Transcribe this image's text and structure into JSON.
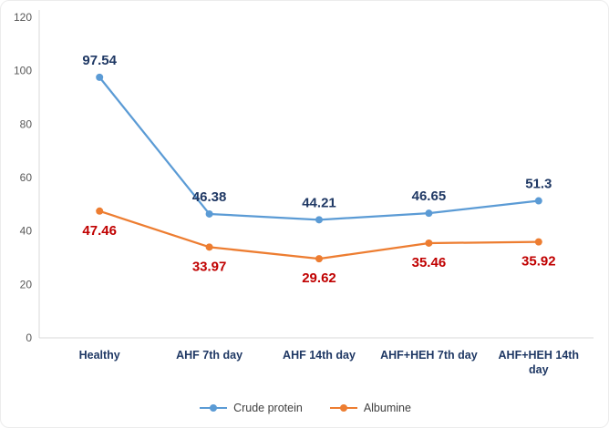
{
  "chart_data": {
    "type": "line",
    "title": "",
    "xlabel": "",
    "ylabel": "",
    "categories": [
      "Healthy",
      "AHF 7th day",
      "AHF 14th day",
      "AHF+HEH 7th day",
      "AHF+HEH 14th day"
    ],
    "series": [
      {
        "name": "Crude protein",
        "values": [
          97.54,
          46.38,
          44.21,
          46.65,
          51.3
        ],
        "color": "#5B9BD5",
        "label_color": "#1F3864",
        "label_position": "above"
      },
      {
        "name": "Albumine",
        "values": [
          47.46,
          33.97,
          29.62,
          35.46,
          35.92
        ],
        "color": "#ED7D31",
        "label_color": "#C00000",
        "label_position": "below"
      }
    ],
    "ylim": [
      0,
      120
    ],
    "yticks": [
      0,
      20,
      40,
      60,
      80,
      100,
      120
    ],
    "grid": false,
    "legend_position": "bottom",
    "colors": {
      "axis_line": "#D9D9D9",
      "tick_label": "#595959",
      "category_label": "#1F3864"
    }
  }
}
